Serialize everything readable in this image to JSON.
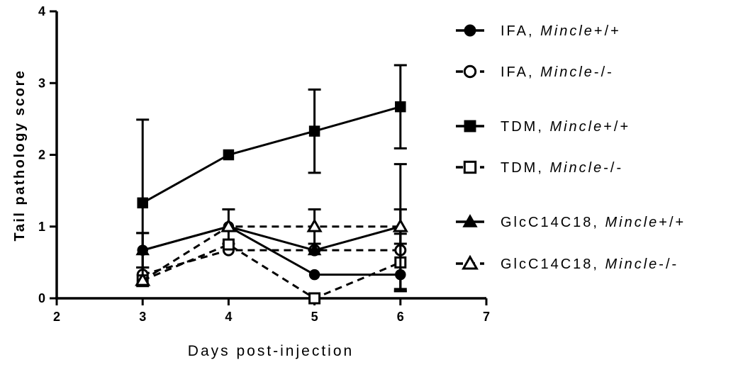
{
  "chart_data": {
    "type": "line",
    "title": "",
    "xlabel": "Days post-injection",
    "ylabel": "Tail pathology score",
    "xlim": [
      2,
      7
    ],
    "ylim": [
      0,
      4
    ],
    "x_ticks": [
      2,
      3,
      4,
      5,
      6,
      7
    ],
    "y_ticks": [
      0,
      1,
      2,
      3,
      4
    ],
    "grid": false,
    "legend_position": "right",
    "series": [
      {
        "name_prefix": "IFA, ",
        "name_italic": "Mincle",
        "name_suffix": "+/+",
        "marker": "circle",
        "filled": true,
        "dashed": false,
        "color": "#000000",
        "x": [
          3,
          4,
          5,
          6
        ],
        "y": [
          0.67,
          1.0,
          0.33,
          0.33
        ],
        "err": [
          0.24,
          0.24,
          0.0,
          0.0
        ]
      },
      {
        "name_prefix": "IFA, ",
        "name_italic": "Mincle",
        "name_suffix": "-/-",
        "marker": "circle",
        "filled": false,
        "dashed": true,
        "color": "#000000",
        "x": [
          3,
          4,
          5,
          6
        ],
        "y": [
          0.33,
          0.67,
          0.67,
          0.67
        ],
        "err": [
          0.0,
          0.0,
          0.0,
          0.57
        ]
      },
      {
        "name_prefix": "TDM, ",
        "name_italic": "Mincle",
        "name_suffix": "+/+",
        "marker": "square",
        "filled": true,
        "dashed": false,
        "color": "#000000",
        "x": [
          3,
          4,
          5,
          6
        ],
        "y": [
          1.33,
          2.0,
          2.33,
          2.67
        ],
        "err": [
          1.16,
          0.0,
          0.58,
          0.58
        ]
      },
      {
        "name_prefix": "TDM, ",
        "name_italic": "Mincle",
        "name_suffix": "-/-",
        "marker": "square",
        "filled": false,
        "dashed": true,
        "color": "#000000",
        "x": [
          3,
          4,
          5,
          6
        ],
        "y": [
          0.25,
          0.75,
          0.0,
          0.5
        ],
        "err": [
          0.0,
          0.0,
          0.0,
          0.4
        ]
      },
      {
        "name_prefix": "GlcC14C18, ",
        "name_italic": "Mincle",
        "name_suffix": "+/+",
        "marker": "triangle",
        "filled": true,
        "dashed": false,
        "color": "#000000",
        "x": [
          3,
          4,
          5,
          6
        ],
        "y": [
          0.67,
          1.0,
          0.67,
          1.0
        ],
        "err": [
          0.24,
          0.0,
          0.0,
          0.87
        ]
      },
      {
        "name_prefix": "GlcC14C18, ",
        "name_italic": "Mincle",
        "name_suffix": "-/-",
        "marker": "triangle",
        "filled": false,
        "dashed": true,
        "color": "#000000",
        "x": [
          3,
          4,
          5,
          6
        ],
        "y": [
          0.25,
          1.0,
          1.0,
          1.0
        ],
        "err": [
          0.0,
          0.0,
          0.24,
          0.24
        ]
      }
    ]
  }
}
